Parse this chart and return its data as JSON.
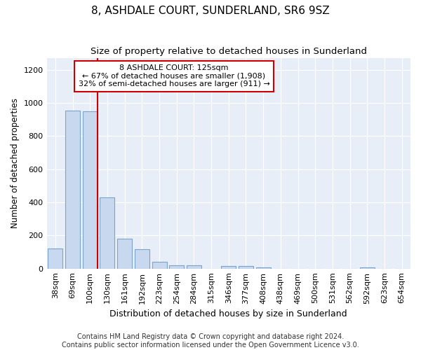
{
  "title": "8, ASHDALE COURT, SUNDERLAND, SR6 9SZ",
  "subtitle": "Size of property relative to detached houses in Sunderland",
  "xlabel": "Distribution of detached houses by size in Sunderland",
  "ylabel": "Number of detached properties",
  "categories": [
    "38sqm",
    "69sqm",
    "100sqm",
    "130sqm",
    "161sqm",
    "192sqm",
    "223sqm",
    "254sqm",
    "284sqm",
    "315sqm",
    "346sqm",
    "377sqm",
    "408sqm",
    "438sqm",
    "469sqm",
    "500sqm",
    "531sqm",
    "562sqm",
    "592sqm",
    "623sqm",
    "654sqm"
  ],
  "values": [
    120,
    955,
    948,
    428,
    182,
    118,
    42,
    20,
    20,
    0,
    15,
    15,
    8,
    0,
    0,
    0,
    0,
    0,
    8,
    0,
    0
  ],
  "bar_color": "#c8d8ee",
  "bar_edge_color": "#7aa4cc",
  "vline_color": "#cc0000",
  "annotation_text": "8 ASHDALE COURT: 125sqm\n← 67% of detached houses are smaller (1,908)\n32% of semi-detached houses are larger (911) →",
  "annotation_box_color": "#ffffff",
  "annotation_box_edge_color": "#cc0000",
  "ylim": [
    0,
    1270
  ],
  "yticks": [
    0,
    200,
    400,
    600,
    800,
    1000,
    1200
  ],
  "footer": "Contains HM Land Registry data © Crown copyright and database right 2024.\nContains public sector information licensed under the Open Government Licence v3.0.",
  "bg_color": "#ffffff",
  "plot_bg_color": "#e8eef8",
  "grid_color": "#ffffff",
  "title_fontsize": 11,
  "subtitle_fontsize": 9.5,
  "xlabel_fontsize": 9,
  "ylabel_fontsize": 8.5,
  "tick_fontsize": 8,
  "footer_fontsize": 7
}
